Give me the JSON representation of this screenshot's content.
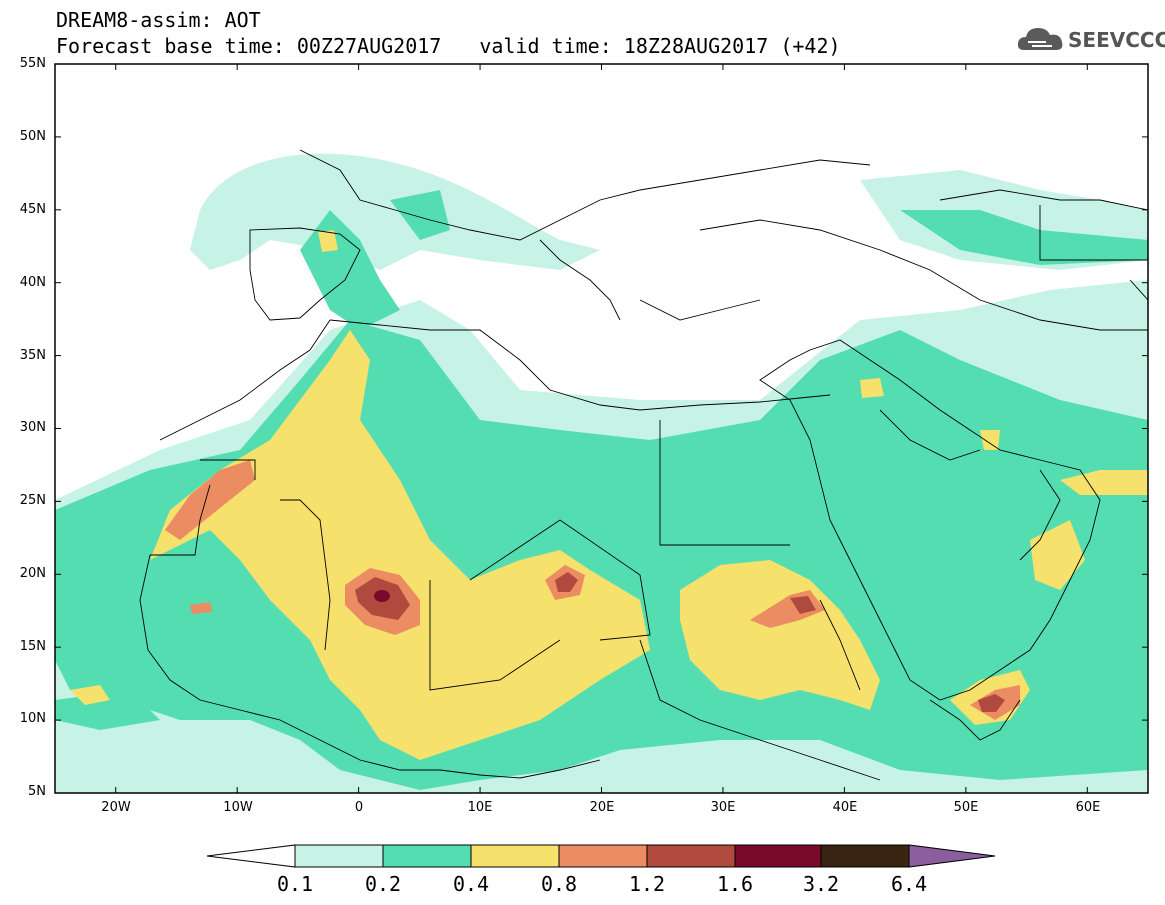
{
  "header": {
    "model_line": "DREAM8-assim: AOT",
    "base_time": "Forecast base time: 00Z27AUG2017",
    "valid_time": "valid time: 18Z28AUG2017 (+42)"
  },
  "logo": {
    "text": "SEEVCCC",
    "icon": "cloud-icon",
    "color": "#555555"
  },
  "axes": {
    "lat_labels": [
      "55N",
      "50N",
      "45N",
      "40N",
      "35N",
      "30N",
      "25N",
      "20N",
      "15N",
      "10N",
      "5N"
    ],
    "lon_labels": [
      "20W",
      "10W",
      "0",
      "10E",
      "20E",
      "30E",
      "40E",
      "50E",
      "60E"
    ]
  },
  "colorbar": {
    "labels": [
      "0.1",
      "0.2",
      "0.4",
      "0.8",
      "1.2",
      "1.6",
      "3.2",
      "6.4"
    ],
    "colors": [
      "#ffffff",
      "#c7f2e6",
      "#55ddb2",
      "#f5e16b",
      "#ec8c63",
      "#b14a3e",
      "#7a0a2a",
      "#3a2412",
      "#8b5f9e"
    ]
  },
  "map_data": {
    "extent": {
      "lon": [
        -25,
        65
      ],
      "lat": [
        5,
        55
      ]
    },
    "variable": "AOT",
    "levels": [
      0.1,
      0.2,
      0.4,
      0.8,
      1.2,
      1.6,
      3.2,
      6.4
    ]
  }
}
